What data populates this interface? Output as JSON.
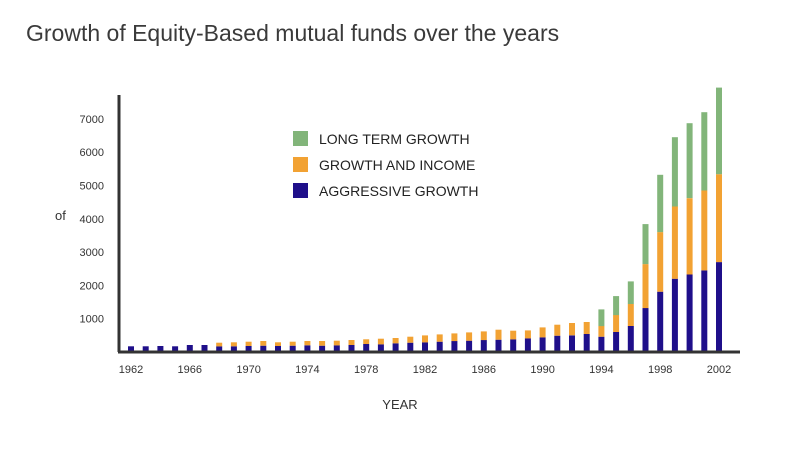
{
  "chart_data": {
    "type": "bar",
    "stacked": true,
    "title": "Growth of Equity-Based mutual funds over the years",
    "xlabel": "YEAR",
    "ylabel": "of",
    "ylim": [
      0,
      8000
    ],
    "yticks": [
      1000,
      2000,
      3000,
      4000,
      5000,
      6000,
      7000
    ],
    "xtick_labels": [
      "1962",
      "1966",
      "1970",
      "1974",
      "1978",
      "1982",
      "1986",
      "1990",
      "1994",
      "1998",
      "2002"
    ],
    "grid": false,
    "legend_position": "top-center",
    "categories": [
      "1962",
      "1963",
      "1964",
      "1965",
      "1966",
      "1967",
      "1968",
      "1969",
      "1970",
      "1971",
      "1972",
      "1973",
      "1974",
      "1975",
      "1976",
      "1977",
      "1978",
      "1979",
      "1980",
      "1981",
      "1982",
      "1983",
      "1984",
      "1985",
      "1986",
      "1987",
      "1988",
      "1989",
      "1990",
      "1991",
      "1992",
      "1993",
      "1994",
      "1995",
      "1996",
      "1997",
      "1998",
      "1999",
      "2000",
      "2001",
      "2002"
    ],
    "series": [
      {
        "name": "AGGRESSIVE GROWTH",
        "color": "#1f0f8a",
        "values": [
          170,
          170,
          180,
          170,
          210,
          210,
          170,
          170,
          180,
          190,
          180,
          190,
          200,
          190,
          200,
          210,
          240,
          230,
          260,
          280,
          290,
          310,
          330,
          340,
          360,
          370,
          380,
          410,
          440,
          490,
          500,
          540,
          460,
          600,
          780,
          1320,
          1810,
          2200,
          2330,
          2450,
          2700
        ]
      },
      {
        "name": "GROWTH AND INCOME",
        "color": "#f2a233",
        "values": [
          0,
          0,
          0,
          0,
          0,
          0,
          110,
          120,
          130,
          140,
          110,
          120,
          130,
          140,
          140,
          150,
          140,
          170,
          160,
          180,
          210,
          220,
          230,
          250,
          260,
          300,
          260,
          240,
          300,
          330,
          370,
          360,
          320,
          510,
          660,
          1320,
          1790,
          2170,
          2290,
          2400,
          2640
        ]
      },
      {
        "name": "LONG TERM GROWTH",
        "color": "#82b57a",
        "values": [
          0,
          0,
          0,
          0,
          0,
          0,
          0,
          0,
          0,
          0,
          0,
          0,
          0,
          0,
          0,
          0,
          0,
          0,
          0,
          0,
          0,
          0,
          0,
          0,
          0,
          0,
          0,
          0,
          0,
          0,
          0,
          0,
          500,
          570,
          680,
          1200,
          1720,
          2080,
          2250,
          2350,
          2600
        ]
      }
    ]
  }
}
